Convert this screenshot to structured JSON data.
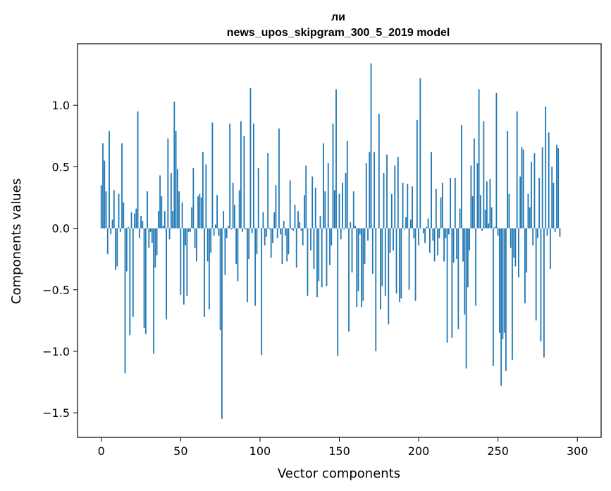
{
  "chart_data": {
    "type": "bar",
    "title": "ли",
    "subtitle": "news_upos_skipgram_300_5_2019 model",
    "xlabel": "Vector components",
    "ylabel": "Components values",
    "xlim": [
      -15,
      315
    ],
    "ylim": [
      -1.7,
      1.5
    ],
    "x_ticks": [
      0,
      50,
      100,
      150,
      200,
      250,
      300
    ],
    "y_ticks": [
      -1.5,
      -1.0,
      -0.5,
      0.0,
      0.5,
      1.0
    ],
    "y_tick_labels": [
      "−1.5",
      "−1.0",
      "−0.5",
      "0.0",
      "0.5",
      "1.0"
    ],
    "bar_color": "#1f77b4",
    "grid": false,
    "values": [
      0.35,
      0.69,
      0.55,
      0.3,
      -0.21,
      0.79,
      -0.05,
      0.07,
      0.31,
      -0.34,
      -0.31,
      0.28,
      -0.03,
      0.69,
      0.21,
      -1.18,
      -0.35,
      0.01,
      -0.87,
      0.13,
      -0.72,
      0.12,
      0.16,
      0.95,
      -0.08,
      0.1,
      0.06,
      -0.81,
      -0.86,
      0.3,
      -0.16,
      -0.03,
      -0.12,
      -1.02,
      -0.32,
      -0.22,
      0.14,
      0.43,
      0.26,
      0.02,
      0.14,
      -0.74,
      0.73,
      -0.09,
      0.45,
      0.14,
      1.03,
      0.79,
      0.48,
      0.3,
      -0.54,
      0.21,
      -0.62,
      -0.14,
      -0.55,
      -0.03,
      -0.03,
      0.17,
      0.49,
      -0.16,
      -0.27,
      0.26,
      0.28,
      0.25,
      0.62,
      -0.72,
      0.52,
      -0.27,
      -0.66,
      -0.2,
      0.86,
      -0.06,
      0.03,
      0.27,
      -0.06,
      -0.83,
      -1.55,
      0.14,
      -0.38,
      -0.08,
      0.02,
      0.85,
      -0.01,
      0.37,
      0.19,
      -0.29,
      -0.43,
      0.31,
      0.87,
      -0.03,
      0.75,
      -0.01,
      -0.6,
      -0.25,
      1.14,
      -0.04,
      0.85,
      -0.63,
      -0.21,
      0.49,
      0.0,
      -1.03,
      0.13,
      -0.14,
      -0.07,
      0.61,
      -0.01,
      -0.24,
      -0.12,
      0.13,
      0.35,
      -0.08,
      0.81,
      -0.05,
      -0.29,
      0.06,
      -0.06,
      -0.27,
      -0.21,
      0.39,
      -0.01,
      -0.02,
      0.19,
      -0.32,
      0.14,
      0.05,
      -0.02,
      -0.14,
      0.27,
      0.51,
      -0.55,
      0.0,
      -0.18,
      0.42,
      -0.33,
      0.33,
      -0.56,
      -0.43,
      0.1,
      -0.48,
      0.69,
      0.3,
      -0.47,
      0.53,
      -0.3,
      -0.14,
      0.85,
      0.31,
      1.13,
      -1.04,
      0.28,
      -0.09,
      0.37,
      -0.01,
      0.45,
      0.71,
      -0.84,
      0.05,
      -0.36,
      0.3,
      0.02,
      -0.64,
      -0.51,
      -0.05,
      -0.64,
      -0.59,
      -0.29,
      0.53,
      -0.1,
      0.62,
      1.34,
      -0.37,
      0.62,
      -1.0,
      0.0,
      0.93,
      -0.66,
      -0.47,
      0.45,
      -0.55,
      0.6,
      -0.78,
      -0.2,
      0.28,
      -0.18,
      0.51,
      -0.53,
      0.58,
      -0.6,
      -0.57,
      0.37,
      -0.01,
      0.09,
      0.36,
      -0.5,
      0.07,
      0.34,
      -0.08,
      -0.59,
      0.88,
      -0.14,
      1.22,
      0.0,
      -0.04,
      -0.12,
      0.01,
      0.08,
      -0.2,
      0.62,
      -0.1,
      -0.27,
      0.32,
      -0.22,
      -0.08,
      0.25,
      0.37,
      -0.27,
      -0.08,
      -0.93,
      -0.05,
      0.41,
      -0.89,
      -0.28,
      0.41,
      -0.25,
      -0.82,
      0.16,
      0.84,
      -0.27,
      -0.7,
      -1.14,
      -0.48,
      -0.18,
      0.51,
      0.26,
      0.73,
      -0.63,
      0.53,
      1.13,
      0.27,
      -0.02,
      0.87,
      0.15,
      0.38,
      0.04,
      0.4,
      0.17,
      -1.12,
      0.01,
      1.1,
      -0.06,
      -0.85,
      -1.28,
      -0.9,
      -0.85,
      -1.16,
      0.79,
      0.28,
      -0.16,
      -1.07,
      -0.24,
      -0.31,
      0.95,
      -0.4,
      0.42,
      0.66,
      0.64,
      -0.61,
      -0.36,
      0.28,
      0.17,
      0.54,
      -0.14,
      0.61,
      -0.75,
      -0.08,
      0.41,
      -0.92,
      0.66,
      -1.05,
      0.99,
      -0.06,
      0.78,
      -0.33,
      0.5,
      0.37,
      -0.03,
      0.68,
      0.65,
      -0.07
    ]
  }
}
